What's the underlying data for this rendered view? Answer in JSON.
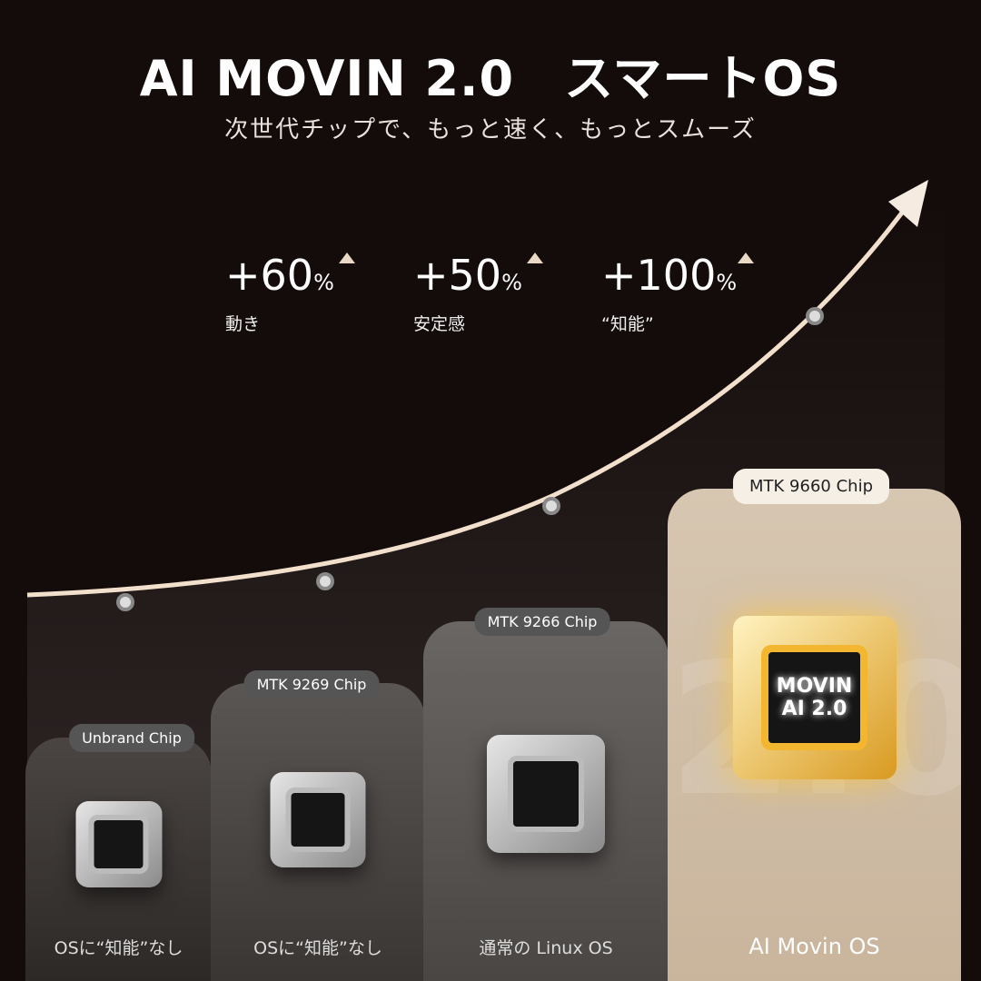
{
  "header": {
    "title": "AI MOVIN 2.0　スマートOS",
    "subtitle": "次世代チップで、もっと速く、もっとスムーズ"
  },
  "stats": [
    {
      "value": "+60",
      "unit": "%",
      "label": "動き"
    },
    {
      "value": "+50",
      "unit": "%",
      "label": "安定感"
    },
    {
      "value": "+100",
      "unit": "%",
      "label": "“知能”"
    }
  ],
  "columns": [
    {
      "chip": "Unbrand Chip",
      "os": "OSに“知能”なし"
    },
    {
      "chip": "MTK 9269 Chip",
      "os": "OSに“知能”なし"
    },
    {
      "chip": "MTK 9266 Chip",
      "os": "通常の Linux OS"
    },
    {
      "chip": "MTK 9660 Chip",
      "os": "AI Movin OS",
      "chip_text_1": "MOVIN",
      "chip_text_2": "AI 2.0",
      "watermark": "2.0"
    }
  ],
  "colors": {
    "background": "#140c0b",
    "accent": "#f2e0cc",
    "gold": "#f2b630"
  }
}
